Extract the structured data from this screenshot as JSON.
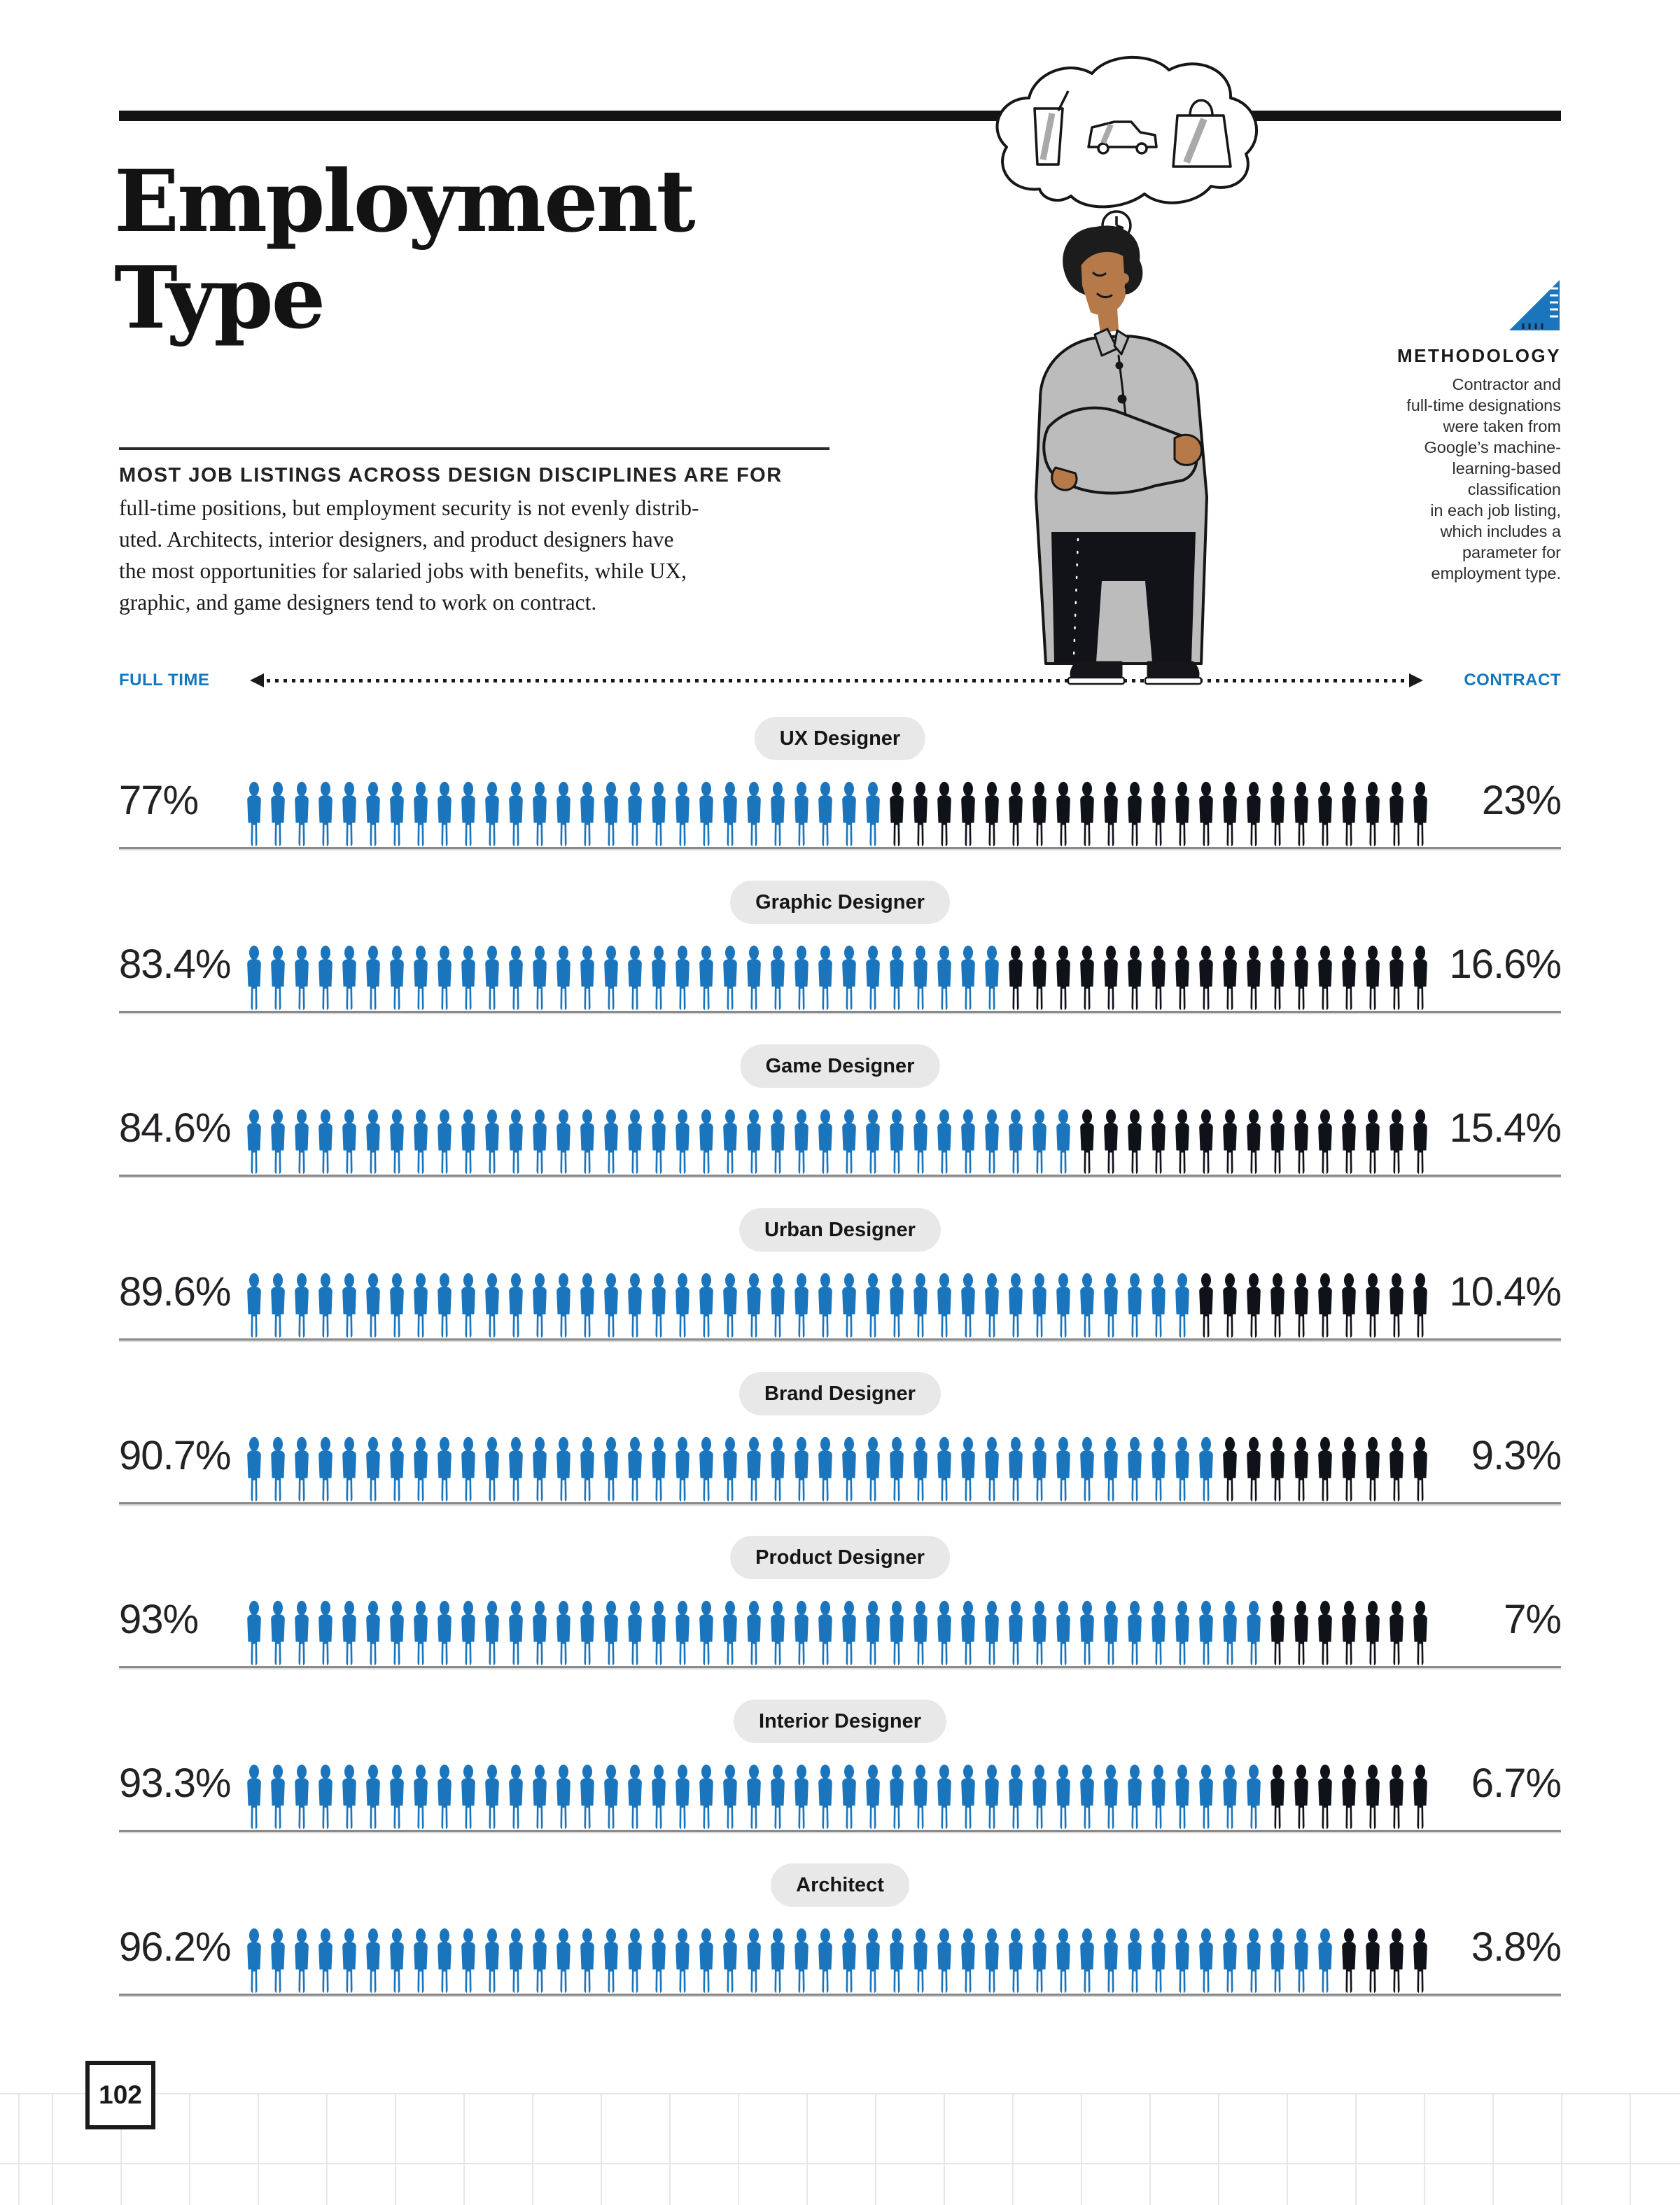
{
  "title": {
    "line1": "Employment",
    "line2": "Type"
  },
  "intro": {
    "lead": "MOST JOB LISTINGS ACROSS DESIGN DISCIPLINES ARE FOR",
    "body": "full-time positions, but employment security is not evenly distrib-\nuted. Architects, interior designers, and product designers have\nthe most opportunities for salaried jobs with benefits, while UX,\ngraphic, and game designers tend to work on contract."
  },
  "methodology": {
    "heading": "METHODOLOGY",
    "body": "Contractor and\nfull-time designations\nwere taken from\nGoogle’s machine-\nlearning-based\nclassification\nin each job listing,\nwhich includes a\nparameter for\nemployment type."
  },
  "axis": {
    "left_label": "FULL TIME",
    "right_label": "CONTRACT"
  },
  "page": {
    "number": "102"
  },
  "colors": {
    "accent_blue": "#1b75bc",
    "axis_blue": "#1278be",
    "icon_dark": "#101219",
    "pill_bg": "#e8e8e8",
    "rule_gray": "#8a8a8a",
    "grid_gray": "#e7e7e7",
    "text_dark": "#1a1a1a"
  },
  "chart_data": {
    "type": "pictogram-bar",
    "title": "Employment Type",
    "subtitle": "Share of job listings by employment type per design discipline",
    "axis_left": "FULL TIME",
    "axis_right": "CONTRACT",
    "value_suffix": "%",
    "icons_per_row": 50,
    "categories": [
      "UX Designer",
      "Graphic Designer",
      "Game Designer",
      "Urban Designer",
      "Brand Designer",
      "Product Designer",
      "Interior Designer",
      "Architect"
    ],
    "series": [
      {
        "name": "Full time",
        "color": "#1b75bc",
        "values": [
          77,
          83.4,
          84.6,
          89.6,
          90.7,
          93,
          93.3,
          96.2
        ]
      },
      {
        "name": "Contract",
        "color": "#101219",
        "values": [
          23,
          16.6,
          15.4,
          10.4,
          9.3,
          7,
          6.7,
          3.8
        ]
      }
    ],
    "rows": [
      {
        "category": "UX Designer",
        "left_label": "77%",
        "right_label": "23%",
        "blue_icons": 27,
        "black_icons": 23
      },
      {
        "category": "Graphic Designer",
        "left_label": "83.4%",
        "right_label": "16.6%",
        "blue_icons": 32,
        "black_icons": 18
      },
      {
        "category": "Game Designer",
        "left_label": "84.6%",
        "right_label": "15.4%",
        "blue_icons": 35,
        "black_icons": 15
      },
      {
        "category": "Urban Designer",
        "left_label": "89.6%",
        "right_label": "10.4%",
        "blue_icons": 40,
        "black_icons": 10
      },
      {
        "category": "Brand Designer",
        "left_label": "90.7%",
        "right_label": "9.3%",
        "blue_icons": 41,
        "black_icons": 9
      },
      {
        "category": "Product Designer",
        "left_label": "93%",
        "right_label": "7%",
        "blue_icons": 43,
        "black_icons": 7
      },
      {
        "category": "Interior Designer",
        "left_label": "93.3%",
        "right_label": "6.7%",
        "blue_icons": 43,
        "black_icons": 7
      },
      {
        "category": "Architect",
        "left_label": "96.2%",
        "right_label": "3.8%",
        "blue_icons": 46,
        "black_icons": 4
      }
    ]
  }
}
